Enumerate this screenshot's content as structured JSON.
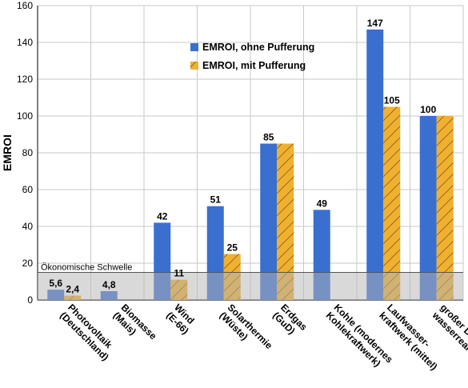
{
  "chart_data": {
    "type": "bar",
    "ylabel": "EMROI",
    "ylim": [
      0,
      160
    ],
    "yticks": [
      0,
      20,
      40,
      60,
      80,
      100,
      120,
      140,
      160
    ],
    "grid": true,
    "legend_position": "top-center",
    "categories": [
      [
        "Photovoltaik",
        "(Deutschland)"
      ],
      [
        "Biomasse",
        "(Mais)"
      ],
      [
        "Wind",
        "(E-66)"
      ],
      [
        "Solarthermie",
        "(Wüste)"
      ],
      [
        "Erdgas",
        "(GuD)"
      ],
      [
        "Kohle (modernes",
        "Kohlekraftwerk)"
      ],
      [
        "Laufwasser-",
        "kraftwerk (mittel)"
      ],
      [
        "großer Druck-",
        "wasserreaktor"
      ]
    ],
    "series": [
      {
        "name": "EMROI, ohne Pufferung",
        "color": "#3a6fd0",
        "values": [
          5.6,
          4.8,
          42,
          51,
          85,
          49,
          147,
          100
        ]
      },
      {
        "name": "EMROI, mit Pufferung",
        "color": "#f0b030",
        "values": [
          2.4,
          null,
          11,
          25,
          85,
          null,
          105,
          100
        ]
      }
    ],
    "data_labels": [
      {
        "text": "5,6",
        "category": 0,
        "series": 0
      },
      {
        "text": "2,4",
        "category": 0,
        "series": 1
      },
      {
        "text": "4,8",
        "category": 1,
        "series": 0
      },
      {
        "text": "42",
        "category": 2,
        "series": 0
      },
      {
        "text": "11",
        "category": 2,
        "series": 1
      },
      {
        "text": "51",
        "category": 3,
        "series": 0
      },
      {
        "text": "25",
        "category": 3,
        "series": 1
      },
      {
        "text": "85",
        "category": 4,
        "series": 0
      },
      {
        "text": "49",
        "category": 5,
        "series": 0
      },
      {
        "text": "147",
        "category": 6,
        "series": 0
      },
      {
        "text": "105",
        "category": 6,
        "series": 1
      },
      {
        "text": "100",
        "category": 7,
        "series": 0
      }
    ],
    "threshold": {
      "label": "Ökonomische Schwelle",
      "value": 15,
      "color": "#b4b4b4"
    }
  }
}
